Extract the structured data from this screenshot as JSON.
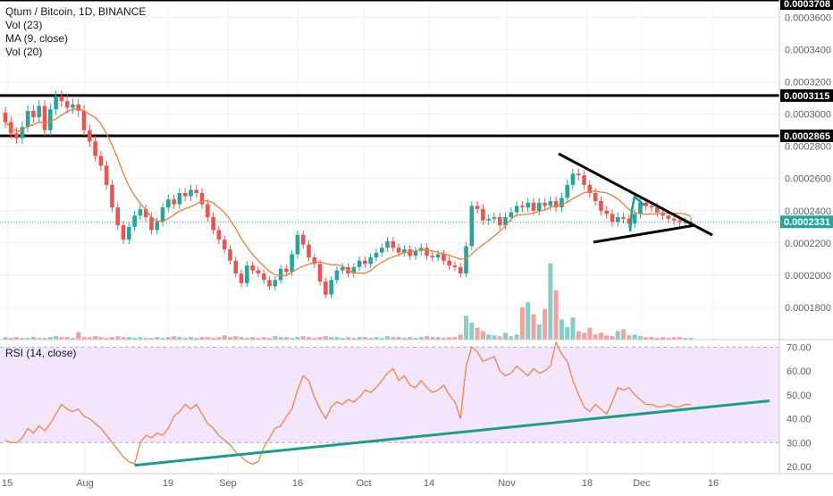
{
  "header": {
    "legend_lines": [
      "Qtum / Bitcoin, 1D, BINANCE",
      "Vol (23)",
      "MA (9, close)",
      "Vol (20)"
    ]
  },
  "rsi_panel": {
    "label": "RSI (14, close)"
  },
  "colors": {
    "up": "#26a69a",
    "down": "#ef5350",
    "ma": "#f57c3a",
    "rsi_line": "#f57c3a",
    "rsi_band": "#f3e5fb",
    "trendline_green": "#1e9c8a",
    "level": "#000000",
    "price_line": "#26a69a",
    "grid": "#eef0f3"
  },
  "chart_data": [
    {
      "type": "candlestick",
      "symbol": "Qtum / Bitcoin, 1D, BINANCE",
      "x_tick_labels": [
        "15",
        "Aug",
        "19",
        "Sep",
        "16",
        "Oct",
        "14",
        "Nov",
        "18",
        "Dec",
        "16"
      ],
      "y_tick_labels": [
        "0.0003600",
        "0.0003400",
        "0.0003200",
        "0.0003000",
        "0.0002800",
        "0.0002600",
        "0.0002400",
        "0.0002200",
        "0.0002000",
        "0.0001800"
      ],
      "ylim": [
        0.00016,
        0.0003708
      ],
      "price_labels": [
        {
          "text": "0.0003708",
          "value": 0.0003708,
          "style": "level"
        },
        {
          "text": "0.0003115",
          "value": 0.0003115,
          "style": "level"
        },
        {
          "text": "0.0002865",
          "value": 0.0002865,
          "style": "level"
        },
        {
          "text": "0.0002331",
          "value": 0.0002331,
          "style": "last"
        }
      ],
      "horizontal_levels": [
        0.0003708,
        0.0003115,
        0.0002865
      ],
      "last_price": 0.0002331,
      "closes": [
        0.000295,
        0.000288,
        0.000285,
        0.000292,
        0.000302,
        0.000298,
        0.000305,
        0.00029,
        0.000303,
        0.000311,
        0.000308,
        0.000304,
        0.000306,
        0.000302,
        0.00029,
        0.000283,
        0.000274,
        0.000268,
        0.000256,
        0.000242,
        0.000231,
        0.000222,
        0.00023,
        0.000237,
        0.000241,
        0.000236,
        0.000228,
        0.000233,
        0.000242,
        0.000247,
        0.000244,
        0.000251,
        0.000249,
        0.000253,
        0.000251,
        0.000244,
        0.000236,
        0.000228,
        0.000222,
        0.000216,
        0.000209,
        0.000201,
        0.000195,
        0.000206,
        0.000203,
        0.000201,
        0.000197,
        0.000193,
        0.000197,
        0.000204,
        0.000202,
        0.000213,
        0.000225,
        0.000219,
        0.000211,
        0.000207,
        0.000196,
        0.000188,
        0.000197,
        0.000203,
        0.000205,
        0.000201,
        0.000205,
        0.000209,
        0.000207,
        0.000211,
        0.000214,
        0.000217,
        0.000221,
        0.000217,
        0.000214,
        0.000216,
        0.000212,
        0.000215,
        0.000217,
        0.000212,
        0.000211,
        0.000213,
        0.000209,
        0.000206,
        0.000205,
        0.000201,
        0.000218,
        0.000243,
        0.000241,
        0.000234,
        0.000235,
        0.000236,
        0.000231,
        0.000236,
        0.000239,
        0.000243,
        0.000242,
        0.000245,
        0.00024,
        0.000245,
        0.000243,
        0.000246,
        0.000242,
        0.000248,
        0.000256,
        0.000263,
        0.000262,
        0.000256,
        0.000251,
        0.000246,
        0.00024,
        0.000238,
        0.000233,
        0.000236,
        0.000235,
        0.000232,
        0.000238,
        0.000245,
        0.000243,
        0.000242,
        0.000239,
        0.000237,
        0.000235,
        0.000234,
        0.000233,
        0.000233,
        0.0002331
      ],
      "ma_period": 9
    },
    {
      "type": "bar",
      "name": "Vol",
      "note": "volume histogram, same x axis",
      "values": [
        3,
        2,
        3,
        2,
        2,
        3,
        2,
        2,
        3,
        4,
        3,
        3,
        2,
        9,
        3,
        3,
        4,
        3,
        2,
        3,
        4,
        3,
        3,
        2,
        3,
        2,
        2,
        3,
        2,
        3,
        4,
        3,
        2,
        3,
        2,
        3,
        3,
        2,
        3,
        5,
        3,
        4,
        3,
        2,
        3,
        2,
        3,
        2,
        4,
        3,
        3,
        2,
        3,
        4,
        3,
        2,
        3,
        4,
        3,
        3,
        2,
        3,
        2,
        3,
        3,
        2,
        3,
        2,
        4,
        3,
        3,
        2,
        3,
        2,
        3,
        4,
        3,
        3,
        2,
        3,
        3,
        6,
        28,
        20,
        14,
        10,
        6,
        5,
        4,
        8,
        4,
        6,
        38,
        44,
        30,
        18,
        36,
        90,
        58,
        24,
        15,
        26,
        10,
        8,
        14,
        6,
        8,
        5,
        4,
        10,
        12,
        5,
        6,
        4,
        3,
        3,
        2,
        3,
        2,
        3,
        3,
        2,
        2
      ],
      "ymax": 100
    },
    {
      "type": "line",
      "name": "RSI (14, close)",
      "y_tick_labels": [
        "70.00",
        "60.00",
        "50.00",
        "40.00",
        "30.00",
        "20.00"
      ],
      "ylim": [
        17,
        72
      ],
      "bands": [
        30,
        70
      ],
      "values": [
        31,
        30,
        30,
        32,
        36,
        34,
        37,
        35,
        38,
        42,
        46,
        44,
        43,
        44,
        41,
        40,
        38,
        36,
        33,
        30,
        27,
        24,
        22,
        21,
        30,
        33,
        32,
        34,
        33,
        36,
        41,
        43,
        46,
        44,
        46,
        42,
        38,
        36,
        33,
        31,
        29,
        26,
        24,
        22,
        21,
        22,
        28,
        32,
        36,
        37,
        41,
        44,
        52,
        58,
        56,
        49,
        44,
        40,
        45,
        47,
        46,
        48,
        47,
        49,
        52,
        51,
        53,
        56,
        59,
        61,
        56,
        58,
        54,
        53,
        56,
        53,
        51,
        52,
        54,
        50,
        47,
        40,
        62,
        70,
        68,
        64,
        65,
        66,
        60,
        58,
        59,
        62,
        60,
        58,
        61,
        59,
        60,
        62,
        72,
        67,
        64,
        56,
        50,
        45,
        43,
        46,
        44,
        42,
        47,
        53,
        52,
        53,
        50,
        48,
        46,
        46,
        45,
        45,
        46,
        45,
        45,
        46,
        46
      ],
      "trendline": {
        "from": {
          "index": 23,
          "value": 20.5
        },
        "to": {
          "index": 136,
          "value": 47.5
        }
      }
    }
  ]
}
